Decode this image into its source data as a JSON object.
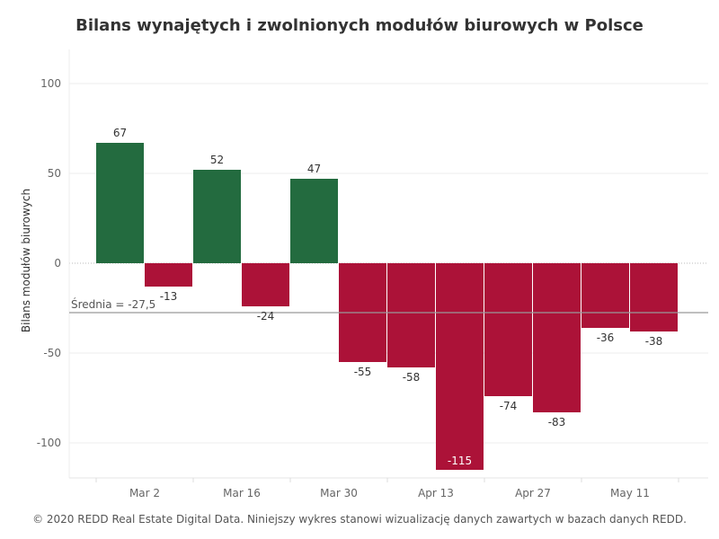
{
  "chart_data": {
    "type": "bar",
    "title": "Bilans wynajętych i zwolnionych modułów biurowych w Polsce",
    "ylabel": "Bilans modułów biurowych",
    "xlabel": "",
    "ylim": [
      -120,
      120
    ],
    "yticks": [
      100,
      50,
      0,
      -50,
      -100
    ],
    "x_tick_labels": [
      "Mar 2",
      "Mar 16",
      "Mar 30",
      "Apr 13",
      "Apr 27",
      "May 11"
    ],
    "values": [
      67,
      -13,
      52,
      -24,
      47,
      -55,
      -58,
      -115,
      -74,
      -83,
      -36,
      -38
    ],
    "reference_line": {
      "value": -27.5,
      "label": "Średnia = -27,5"
    },
    "colors": {
      "positive": "#236b3f",
      "negative": "#ac1238",
      "reference": "#999999"
    },
    "grid": true
  },
  "footer": "© 2020 REDD Real Estate Digital Data. Niniejszy wykres stanowi wizualizację danych zawartych w bazach danych REDD."
}
